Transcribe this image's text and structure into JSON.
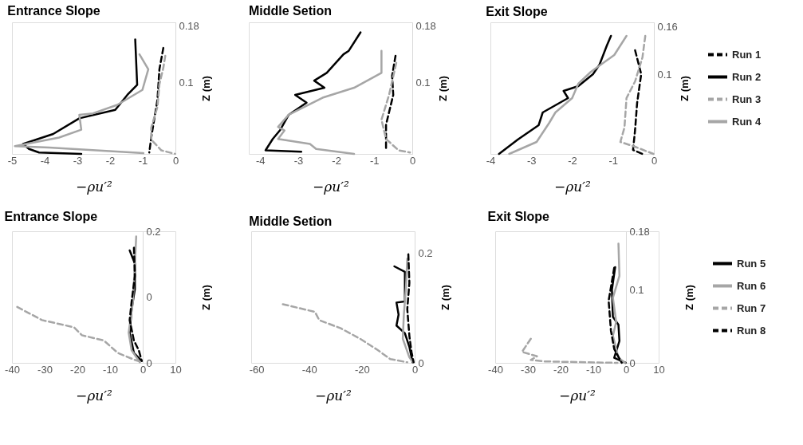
{
  "chart_data": [
    {
      "type": "line",
      "title": "Entrance Slope",
      "xlabel": "−ρu′²",
      "ylabel": "Z (m)",
      "xlim": [
        -5,
        0
      ],
      "xticks": [
        -5,
        -4,
        -3,
        -2,
        -1,
        0
      ],
      "ylim": [
        0,
        0.185
      ],
      "yticks": [
        0.18,
        0.1
      ],
      "grid": false,
      "legend": false,
      "series": [
        {
          "color": "#000000",
          "line_style": "dashed",
          "x": [
            -0.37,
            -0.49,
            -0.55,
            -0.64,
            -0.74,
            -0.8
          ],
          "values": [
            0.149,
            0.119,
            0.076,
            0.051,
            0.023,
            0.002
          ]
        },
        {
          "color": "#000000",
          "line_style": "solid",
          "x": [
            -1.23,
            -1.17,
            -1.47,
            -1.84,
            -2.94,
            -3.74,
            -4.66,
            -4.48,
            -4.17,
            -2.88
          ],
          "values": [
            0.161,
            0.097,
            0.083,
            0.062,
            0.05,
            0.028,
            0.014,
            0.007,
            0.002,
            0
          ]
        },
        {
          "color": "#a6a6a6",
          "line_style": "dashed",
          "x": [
            -0.31,
            -0.37,
            -0.49,
            -0.55,
            -0.74,
            -0.74,
            -0.43,
            -0.01
          ],
          "values": [
            0.138,
            0.121,
            0.098,
            0.066,
            0.037,
            0.02,
            0.005,
            0
          ]
        },
        {
          "color": "#a6a6a6",
          "line_style": "solid",
          "x": [
            -1.1,
            -0.83,
            -1.01,
            -1.78,
            -2.52,
            -2.94,
            -2.88,
            -3.56,
            -4.91,
            -3.87,
            -0.98
          ],
          "values": [
            0.14,
            0.119,
            0.09,
            0.069,
            0.057,
            0.055,
            0.034,
            0.023,
            0.011,
            0.009,
            0.001
          ]
        }
      ]
    },
    {
      "type": "line",
      "title": "Middle Setion",
      "xlabel": "−ρu′²",
      "ylabel": "Z (m)",
      "xlim": [
        -4.3,
        0
      ],
      "xticks": [
        -4,
        -3,
        -2,
        -1,
        0
      ],
      "ylim": [
        0,
        0.185
      ],
      "yticks": [
        0.18,
        0.1
      ],
      "grid": false,
      "legend": false,
      "series": [
        {
          "color": "#000000",
          "line_style": "dashed",
          "x": [
            -0.44,
            -0.53,
            -0.5,
            -0.69,
            -0.69
          ],
          "values": [
            0.138,
            0.11,
            0.083,
            0.041,
            0.007
          ]
        },
        {
          "color": "#000000",
          "line_style": "solid",
          "x": [
            -1.36,
            -1.67,
            -1.81,
            -2.25,
            -2.58,
            -2.31,
            -3.08,
            -2.78,
            -3.25,
            -3.47,
            -3.67,
            -3.86,
            -2.92
          ],
          "values": [
            0.171,
            0.145,
            0.14,
            0.114,
            0.103,
            0.093,
            0.083,
            0.072,
            0.055,
            0.034,
            0.021,
            0.005,
            0.003
          ]
        },
        {
          "color": "#a6a6a6",
          "line_style": "dashed",
          "x": [
            -0.42,
            -0.61,
            -0.81,
            -0.69,
            -0.36,
            -0.06
          ],
          "values": [
            0.128,
            0.083,
            0.048,
            0.021,
            0.005,
            0.002
          ]
        },
        {
          "color": "#a6a6a6",
          "line_style": "solid",
          "x": [
            -0.81,
            -0.81,
            -1.53,
            -2.36,
            -3.25,
            -3.53,
            -3.36,
            -3.53,
            -2.69,
            -2.53,
            -1.53
          ],
          "values": [
            0.145,
            0.114,
            0.093,
            0.079,
            0.055,
            0.038,
            0.033,
            0.021,
            0.014,
            0.007,
            0
          ]
        }
      ]
    },
    {
      "type": "line",
      "title": "Exit Slope",
      "xlabel": "−ρu′²",
      "ylabel": "Z (m)",
      "xlim": [
        -4,
        0
      ],
      "xticks": [
        -4,
        -3,
        -2,
        -1,
        0
      ],
      "ylim": [
        0,
        0.165
      ],
      "yticks": [
        0.16,
        0.1
      ],
      "grid": false,
      "legend": "right",
      "series": [
        {
          "name": "Run 1",
          "color": "#000000",
          "line_style": "dashed",
          "x": [
            -0.46,
            -0.31,
            -0.41,
            -0.46,
            -0.51,
            -0.28
          ],
          "values": [
            0.13,
            0.1,
            0.064,
            0.03,
            0.005,
            0
          ]
        },
        {
          "name": "Run 2",
          "color": "#000000",
          "line_style": "solid",
          "x": [
            -1.05,
            -1.15,
            -1.33,
            -1.49,
            -1.85,
            -2.21,
            -2.1,
            -2.72,
            -2.82,
            -3.33,
            -3.79
          ],
          "values": [
            0.148,
            0.136,
            0.112,
            0.1,
            0.085,
            0.079,
            0.07,
            0.052,
            0.036,
            0.018,
            0
          ]
        },
        {
          "name": "Run 3",
          "color": "#a6a6a6",
          "line_style": "dashed",
          "x": [
            -0.21,
            -0.28,
            -0.46,
            -0.67,
            -0.72,
            -0.82,
            -0.46,
            -0.01
          ],
          "values": [
            0.148,
            0.121,
            0.091,
            0.07,
            0.033,
            0.015,
            0.009,
            0
          ]
        },
        {
          "name": "Run 4",
          "color": "#a6a6a6",
          "line_style": "solid",
          "x": [
            -0.67,
            -0.97,
            -1.54,
            -1.85,
            -2.0,
            -2.41,
            -2.56,
            -2.87,
            -3.54
          ],
          "values": [
            0.148,
            0.124,
            0.103,
            0.088,
            0.07,
            0.052,
            0.039,
            0.015,
            0
          ]
        }
      ]
    },
    {
      "type": "line",
      "title": "Entrance Slope",
      "xlabel": "−ρu′²",
      "ylabel": "Z (m)",
      "xlim": [
        -40,
        10
      ],
      "xticks": [
        -40,
        -30,
        -20,
        -10,
        0,
        10
      ],
      "ylim": [
        0,
        0.2
      ],
      "yticks": [
        0.2,
        {
          "value": 0.1,
          "label": "0"
        },
        0
      ],
      "grid": false,
      "legend": false,
      "series": [
        {
          "color": "#000000",
          "line_style": "solid",
          "x": [
            -4.0,
            -2.4,
            -2.4,
            -3.4,
            -4.0,
            -2.7,
            -0.3
          ],
          "values": [
            0.171,
            0.151,
            0.112,
            0.081,
            0.046,
            0.015,
            0.003
          ]
        },
        {
          "color": "#a6a6a6",
          "line_style": "solid",
          "x": [
            -2.0,
            -2.4,
            -3.0,
            -4.3,
            -3.4,
            -0.9
          ],
          "values": [
            0.192,
            0.151,
            0.093,
            0.046,
            0.019,
            0.001
          ]
        },
        {
          "color": "#a6a6a6",
          "line_style": "dashed",
          "x": [
            -38.4,
            -30.8,
            -21.0,
            -18.6,
            -11.9,
            -7.6,
            -2.7,
            -0.3
          ],
          "values": [
            0.085,
            0.065,
            0.054,
            0.042,
            0.034,
            0.015,
            0.005,
            0.001
          ]
        },
        {
          "color": "#000000",
          "line_style": "dashed",
          "x": [
            -2.7,
            -2.4,
            -3.4,
            -4.0,
            -2.7,
            -1.2,
            -0.3
          ],
          "values": [
            0.175,
            0.132,
            0.093,
            0.065,
            0.034,
            0.019,
            0.003
          ]
        }
      ]
    },
    {
      "type": "line",
      "title": "Middle Setion",
      "xlabel": "−ρu′²",
      "ylabel": "Z (m)",
      "xlim": [
        -62,
        0
      ],
      "xticks": [
        -60,
        -40,
        -20,
        0
      ],
      "ylim": [
        0,
        0.24
      ],
      "yticks": [
        0.2,
        0
      ],
      "grid": false,
      "legend": false,
      "series": [
        {
          "color": "#000000",
          "line_style": "solid",
          "x": [
            -7.7,
            -3.7,
            -3.7,
            -6.9,
            -6.1,
            -6.9,
            -3.7,
            -2.0,
            -0.8
          ],
          "values": [
            0.176,
            0.166,
            0.112,
            0.11,
            0.088,
            0.068,
            0.054,
            0.029,
            0.001
          ]
        },
        {
          "color": "#a6a6a6",
          "line_style": "solid",
          "x": [
            -2.8,
            -3.3,
            -4.1,
            -4.5,
            -2.0,
            -0.8
          ],
          "values": [
            0.19,
            0.137,
            0.088,
            0.044,
            0.01,
            0.002
          ]
        },
        {
          "color": "#a6a6a6",
          "line_style": "dashed",
          "x": [
            -50.0,
            -37.8,
            -36.2,
            -28.0,
            -20.7,
            -14.2,
            -9.3,
            -2.8
          ],
          "values": [
            0.107,
            0.093,
            0.078,
            0.063,
            0.044,
            0.024,
            0.007,
            0.001
          ]
        },
        {
          "color": "#000000",
          "line_style": "dashed",
          "x": [
            -2.4,
            -2.0,
            -2.8,
            -2.0,
            -1.2,
            -0.4
          ],
          "values": [
            0.198,
            0.146,
            0.098,
            0.049,
            0.02,
            0.001
          ]
        }
      ]
    },
    {
      "type": "line",
      "title": "Exit Slope",
      "xlabel": "−ρu′²",
      "ylabel": "Z (m)",
      "xlim": [
        -40,
        10
      ],
      "xticks": [
        -40,
        -30,
        -20,
        -10,
        0,
        10
      ],
      "ylim": [
        0,
        0.18
      ],
      "yticks": [
        0.18,
        0.1,
        0
      ],
      "grid": false,
      "legend": "right",
      "series": [
        {
          "name": "Run 5",
          "color": "#000000",
          "line_style": "solid",
          "x": [
            -3.3,
            -4.3,
            -4.0,
            -2.3,
            -2.0,
            -3.6,
            -0.1
          ],
          "values": [
            0.131,
            0.1,
            0.063,
            0.052,
            0.03,
            0.007,
            0
          ]
        },
        {
          "name": "Run 6",
          "color": "#a6a6a6",
          "line_style": "solid",
          "x": [
            -2.3,
            -2.0,
            -4.0,
            -3.0,
            -4.0,
            -2.3,
            -0.3
          ],
          "values": [
            0.163,
            0.119,
            0.089,
            0.056,
            0.037,
            0.007,
            0
          ]
        },
        {
          "name": "Run 7",
          "color": "#a6a6a6",
          "line_style": "dashed",
          "x": [
            -29.1,
            -31.8,
            -27.2,
            -29.1,
            -25.2,
            -2.6
          ],
          "values": [
            0.033,
            0.015,
            0.009,
            0.004,
            0.002,
            0
          ]
        },
        {
          "name": "Run 8",
          "color": "#000000",
          "line_style": "dashed",
          "x": [
            -3.6,
            -5.3,
            -4.6,
            -3.6,
            -1.3
          ],
          "values": [
            0.13,
            0.085,
            0.044,
            0.019,
            0
          ]
        }
      ]
    }
  ]
}
